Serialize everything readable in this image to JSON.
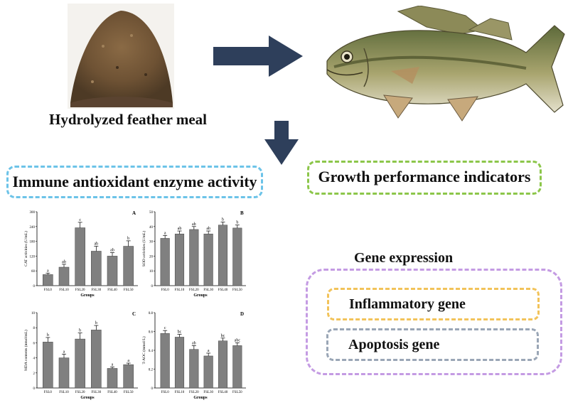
{
  "input": {
    "caption": "Hydrolyzed feather meal",
    "image": "feather-meal-powder",
    "subject_image": "largemouth-bass-fish"
  },
  "sections": {
    "immune": "Immune antioxidant enzyme activity",
    "growth": "Growth performance indicators",
    "gene_expression": {
      "title": "Gene expression",
      "items": [
        "Inflammatory gene",
        "Apoptosis gene"
      ]
    }
  },
  "colors": {
    "arrow": "#2e3f5b",
    "immune_border": "#6cc3e8",
    "growth_border": "#8cc64a",
    "gene_border": "#c49be3",
    "inflammatory_border": "#f2c35a",
    "apoptosis_border": "#9aa6b6",
    "bar": "#808080"
  },
  "chart_data": [
    {
      "panel": "A",
      "type": "bar",
      "categories": [
        "FSL0",
        "FSL10",
        "FSL20",
        "FSL30",
        "FSL40",
        "FSL50"
      ],
      "values": [
        45,
        75,
        235,
        140,
        120,
        160
      ],
      "errors": [
        6,
        12,
        22,
        20,
        14,
        22
      ],
      "letters": [
        "a",
        "ab",
        "c",
        "ab",
        "ab",
        "b"
      ],
      "xlabel": "Groups",
      "ylabel": "CAT activities (U/mL)",
      "ylim": [
        0,
        300
      ],
      "yticks": [
        0,
        60,
        120,
        180,
        240,
        300
      ]
    },
    {
      "panel": "B",
      "type": "bar",
      "categories": [
        "FSL0",
        "FSL10",
        "FSL20",
        "FSL30",
        "FSL40",
        "FSL50"
      ],
      "values": [
        32,
        35,
        38,
        35,
        41,
        39
      ],
      "errors": [
        2,
        2,
        2,
        2,
        2,
        2
      ],
      "letters": [
        "a",
        "ab",
        "ab",
        "ab",
        "b",
        "b"
      ],
      "xlabel": "Groups",
      "ylabel": "SOD activities (U/mL)",
      "ylim": [
        0,
        50
      ],
      "yticks": [
        0,
        10,
        20,
        30,
        40,
        50
      ]
    },
    {
      "panel": "C",
      "type": "bar",
      "categories": [
        "FSL0",
        "FSL10",
        "FSL20",
        "FSL30",
        "FSL40",
        "FSL50"
      ],
      "values": [
        6.1,
        4.0,
        6.5,
        7.7,
        2.6,
        3.1
      ],
      "errors": [
        0.6,
        0.5,
        0.8,
        0.6,
        0.2,
        0.2
      ],
      "letters": [
        "b",
        "a",
        "b",
        "b",
        "a",
        "a"
      ],
      "xlabel": "Groups",
      "ylabel": "MDA contents (nmol/mL)",
      "ylim": [
        0,
        10
      ],
      "yticks": [
        0,
        2,
        4,
        6,
        8,
        10
      ]
    },
    {
      "panel": "D",
      "type": "bar",
      "categories": [
        "FSL0",
        "FSL10",
        "FSL20",
        "FSL30",
        "FSL40",
        "FSL50"
      ],
      "values": [
        0.58,
        0.54,
        0.41,
        0.34,
        0.5,
        0.45
      ],
      "errors": [
        0.03,
        0.03,
        0.04,
        0.03,
        0.03,
        0.03
      ],
      "letters": [
        "c",
        "bc",
        "ab",
        "a",
        "bc",
        "abc"
      ],
      "xlabel": "Groups",
      "ylabel": "T-AOC (mmol/L)",
      "ylim": [
        0,
        0.8
      ],
      "yticks": [
        0,
        0.2,
        0.4,
        0.6,
        0.8
      ]
    }
  ]
}
